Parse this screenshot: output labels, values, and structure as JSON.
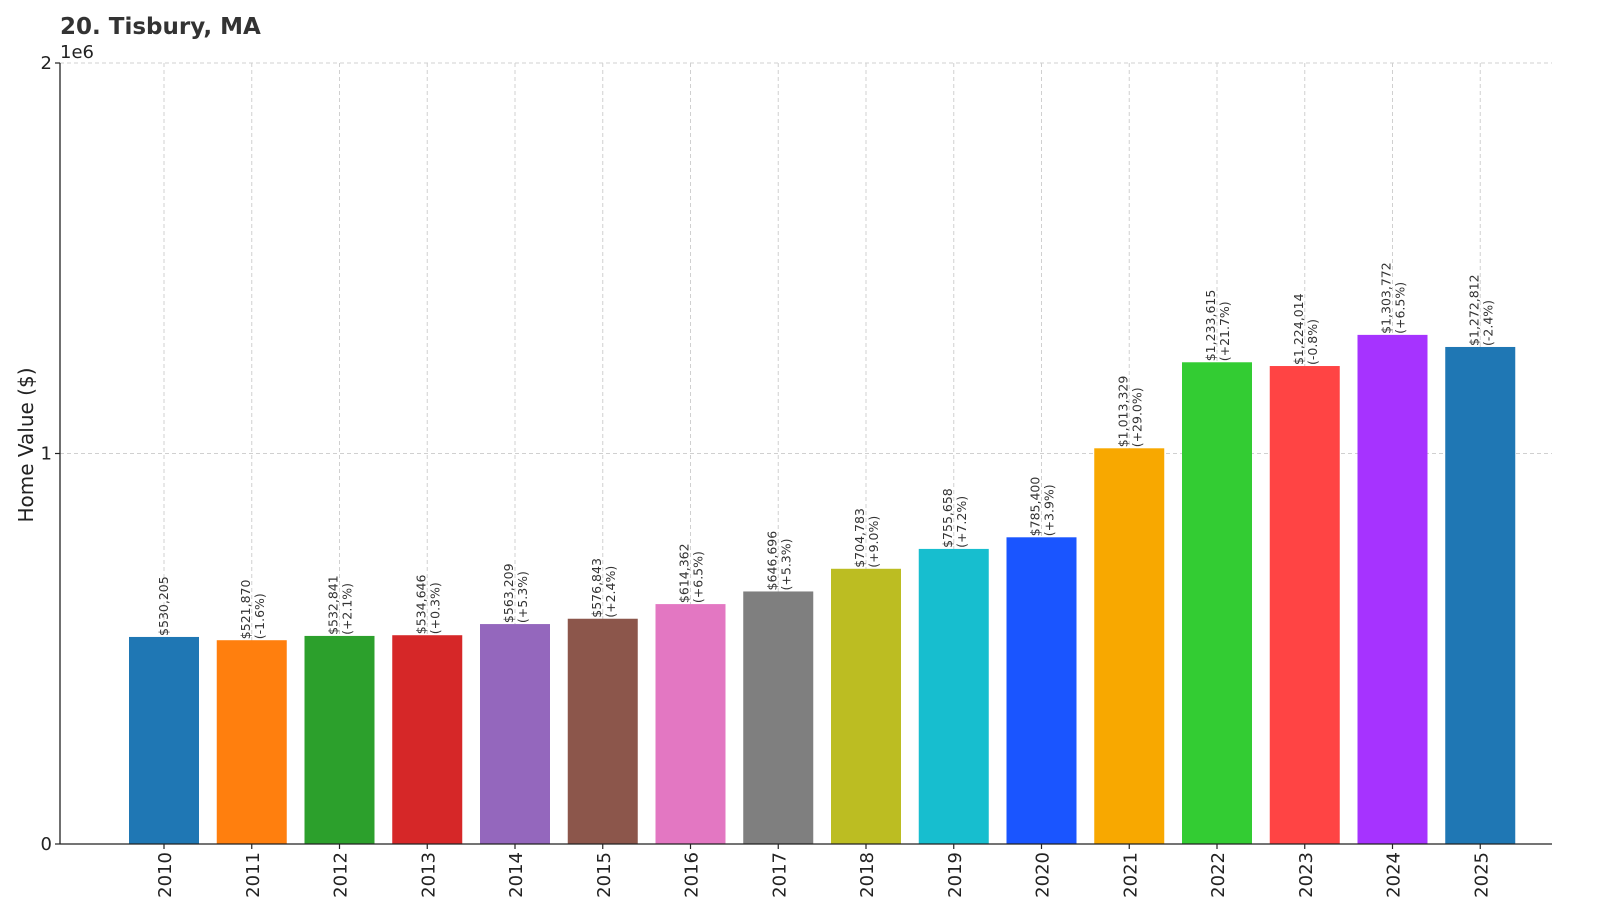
{
  "chart_data": {
    "type": "bar",
    "title": "20. Tisbury, MA",
    "xlabel": "",
    "ylabel": "Home Value ($)",
    "y_multiplier_label": "1e6",
    "ylim": [
      0,
      2000000
    ],
    "yticks": [
      0,
      1000000,
      2000000
    ],
    "ytick_labels": [
      "0",
      "1",
      "2"
    ],
    "grid": true,
    "categories": [
      "2010",
      "2011",
      "2012",
      "2013",
      "2014",
      "2015",
      "2016",
      "2017",
      "2018",
      "2019",
      "2020",
      "2021",
      "2022",
      "2023",
      "2024",
      "2025"
    ],
    "values": [
      530205,
      521870,
      532841,
      534646,
      563209,
      576843,
      614362,
      646696,
      704783,
      755658,
      785400,
      1013329,
      1233615,
      1224014,
      1303772,
      1272812
    ],
    "value_labels": [
      "$530,205",
      "$521,870",
      "$532,841",
      "$534,646",
      "$563,209",
      "$576,843",
      "$614,362",
      "$646,696",
      "$704,783",
      "$755,658",
      "$785,400",
      "$1,013,329",
      "$1,233,615",
      "$1,224,014",
      "$1,303,772",
      "$1,272,812"
    ],
    "change_labels": [
      "",
      "(-1.6%)",
      "(+2.1%)",
      "(+0.3%)",
      "(+5.3%)",
      "(+2.4%)",
      "(+6.5%)",
      "(+5.3%)",
      "(+9.0%)",
      "(+7.2%)",
      "(+3.9%)",
      "(+29.0%)",
      "(+21.7%)",
      "(-0.8%)",
      "(+6.5%)",
      "(-2.4%)"
    ],
    "colors": [
      "#1f77b4",
      "#ff7f0e",
      "#2ca02c",
      "#d62728",
      "#9467bd",
      "#8c564b",
      "#e377c2",
      "#7f7f7f",
      "#bcbd22",
      "#17becf",
      "#1a55ff",
      "#f8a800",
      "#33cc33",
      "#ff4444",
      "#a633ff",
      "#1f77b4"
    ]
  }
}
